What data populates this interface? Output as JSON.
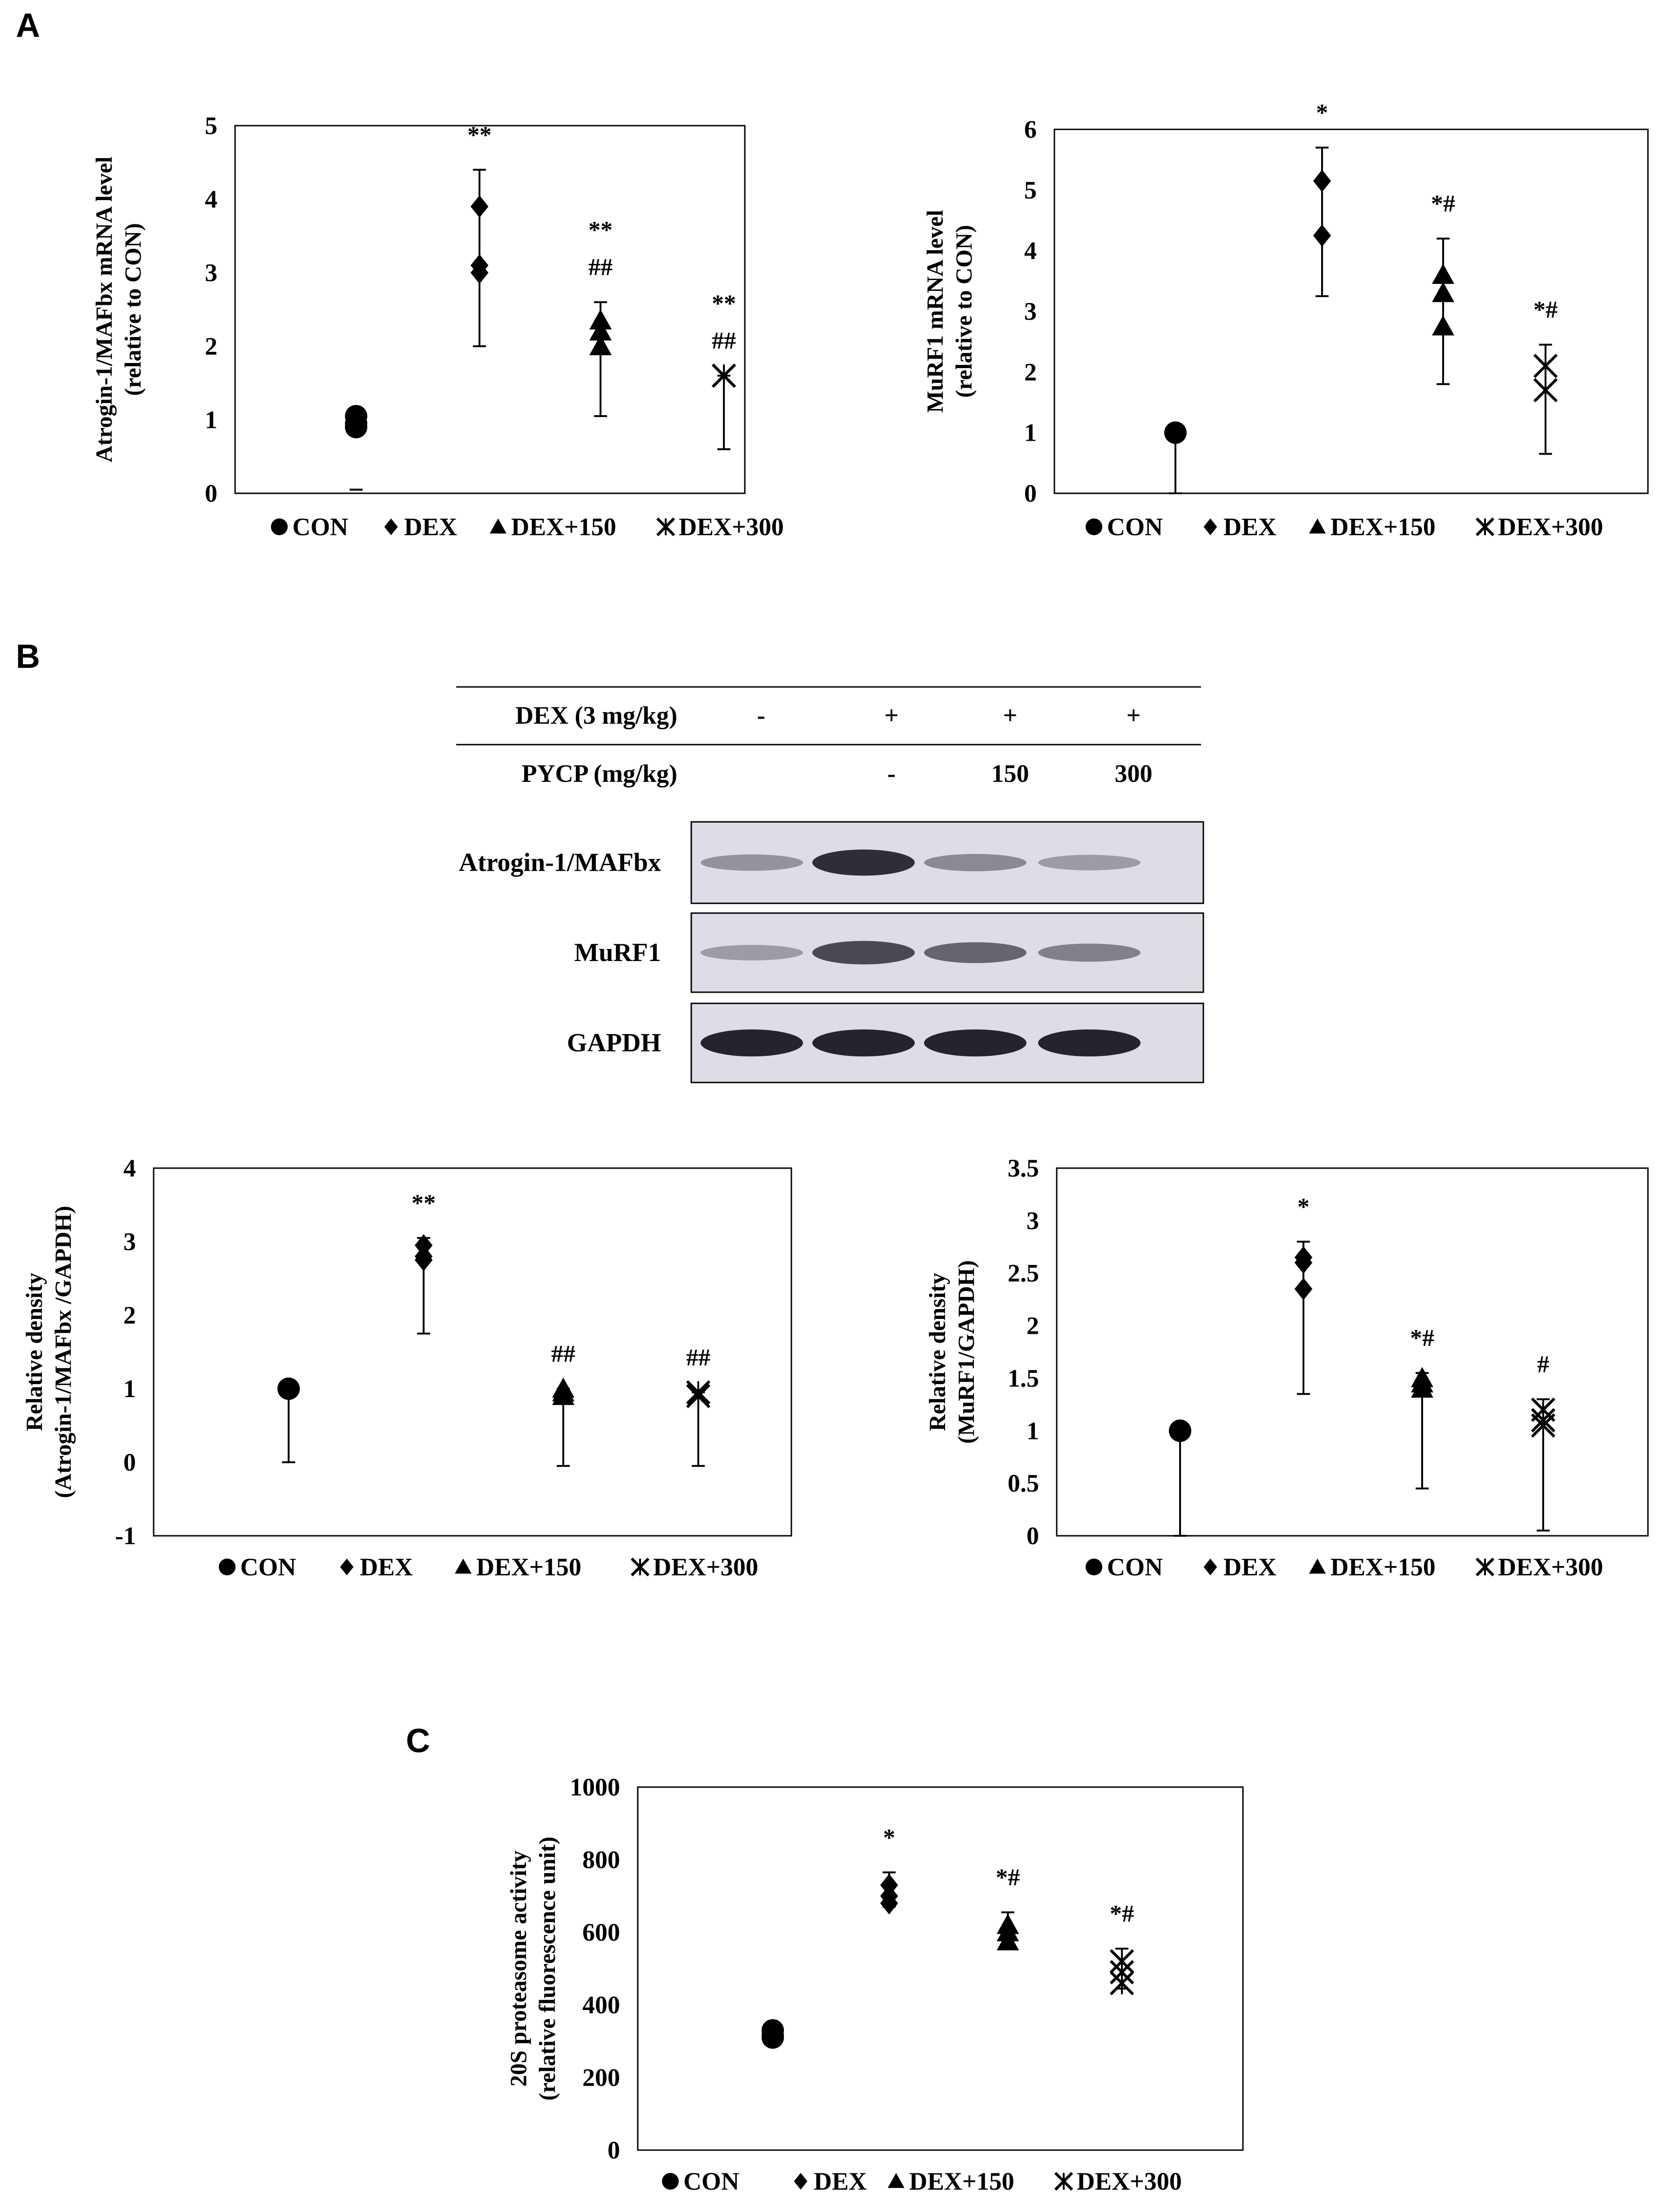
{
  "panel_labels": [
    "A",
    "B",
    "C"
  ],
  "legend": {
    "items": [
      {
        "label": "CON",
        "marker": "circle"
      },
      {
        "label": "DEX",
        "marker": "diamond"
      },
      {
        "label": "DEX+150",
        "marker": "triangle"
      },
      {
        "label": "DEX+300",
        "marker": "asterisk-x"
      }
    ]
  },
  "western_blot": {
    "header_rows": [
      {
        "label": "DEX (3 mg/kg)",
        "values": [
          "-",
          "+",
          "+",
          "+"
        ]
      },
      {
        "label": "PYCP (mg/kg)",
        "values": [
          "",
          "-",
          "150",
          "300"
        ]
      }
    ],
    "bands": [
      {
        "label": "Atrogin-1/MAFbx",
        "intensity": [
          0.35,
          0.9,
          0.4,
          0.3
        ]
      },
      {
        "label": "MuRF1",
        "intensity": [
          0.3,
          0.75,
          0.6,
          0.45
        ]
      },
      {
        "label": "GAPDH",
        "intensity": [
          0.95,
          0.95,
          0.95,
          0.95
        ]
      }
    ]
  },
  "chart_data": [
    {
      "id": "A-left",
      "type": "scatter",
      "title": "",
      "ylabel_lines": [
        "Atrogin-1/MAFbx mRNA level",
        "(relative to CON)"
      ],
      "ylim": [
        0,
        5
      ],
      "yticks": [
        0,
        1,
        2,
        3,
        4,
        5
      ],
      "categories": [
        "CON",
        "DEX",
        "DEX+150",
        "DEX+300"
      ],
      "series": [
        {
          "points": [
            1.05,
            0.95,
            0.9
          ],
          "error_low": 0.05,
          "error_high": 0.05
        },
        {
          "points": [
            3.9,
            3.1,
            3.0
          ],
          "error_low": 2.0,
          "error_high": 4.4
        },
        {
          "points": [
            2.35,
            2.2,
            2.0
          ],
          "error_low": 1.05,
          "error_high": 2.6
        },
        {
          "points": [
            1.6,
            1.6
          ],
          "error_low": 0.6,
          "error_high": 1.6
        }
      ],
      "annotations": [
        [
          "",
          ""
        ],
        [
          "**",
          ""
        ],
        [
          "**",
          "##"
        ],
        [
          "**",
          "##"
        ]
      ],
      "grid": false,
      "legend": "bottom"
    },
    {
      "id": "A-right",
      "type": "scatter",
      "title": "",
      "ylabel_lines": [
        "MuRF1 mRNA level",
        "(relative to CON)"
      ],
      "ylim": [
        0,
        6
      ],
      "yticks": [
        0,
        1,
        2,
        3,
        4,
        5,
        6
      ],
      "categories": [
        "CON",
        "DEX",
        "DEX+150",
        "DEX+300"
      ],
      "series": [
        {
          "points": [
            1.0,
            1.0
          ],
          "error_low": 0.0,
          "error_high": 1.0
        },
        {
          "points": [
            5.15,
            4.25
          ],
          "error_low": 3.25,
          "error_high": 5.7
        },
        {
          "points": [
            3.6,
            3.3,
            2.75
          ],
          "error_low": 1.8,
          "error_high": 4.2
        },
        {
          "points": [
            2.1,
            1.7
          ],
          "error_low": 0.65,
          "error_high": 2.45
        }
      ],
      "annotations": [
        [
          "",
          ""
        ],
        [
          "*",
          ""
        ],
        [
          "*#",
          ""
        ],
        [
          "*#",
          ""
        ]
      ],
      "grid": false,
      "legend": "bottom"
    },
    {
      "id": "B-left",
      "type": "scatter",
      "title": "",
      "ylabel_lines": [
        "Relative density",
        "(Atrogin-1/MAFbx /GAPDH)"
      ],
      "ylim": [
        -1,
        4
      ],
      "yticks": [
        -1,
        0,
        1,
        2,
        3,
        4
      ],
      "categories": [
        "CON",
        "DEX",
        "DEX+150",
        "DEX+300"
      ],
      "series": [
        {
          "points": [
            1.0,
            1.0
          ],
          "error_low": 0.0,
          "error_high": 1.0
        },
        {
          "points": [
            2.95,
            2.8,
            2.75
          ],
          "error_low": 1.75,
          "error_high": 3.05
        },
        {
          "points": [
            1.0,
            0.95,
            0.9
          ],
          "error_low": -0.05,
          "error_high": 1.0
        },
        {
          "points": [
            0.95,
            0.9
          ],
          "error_low": -0.05,
          "error_high": 0.95
        }
      ],
      "annotations": [
        [
          "",
          ""
        ],
        [
          "**",
          ""
        ],
        [
          "##",
          ""
        ],
        [
          "##",
          ""
        ]
      ],
      "grid": false,
      "legend": "bottom"
    },
    {
      "id": "B-right",
      "type": "scatter",
      "title": "",
      "ylabel_lines": [
        "Relative density",
        "(MuRF1/GAPDH)"
      ],
      "ylim": [
        0,
        3.5
      ],
      "yticks": [
        0,
        0.5,
        1,
        1.5,
        2,
        2.5,
        3,
        3.5
      ],
      "categories": [
        "CON",
        "DEX",
        "DEX+150",
        "DEX+300"
      ],
      "series": [
        {
          "points": [
            1.0,
            1.0
          ],
          "error_low": 0.0,
          "error_high": 1.0
        },
        {
          "points": [
            2.65,
            2.6,
            2.35
          ],
          "error_low": 1.35,
          "error_high": 2.8
        },
        {
          "points": [
            1.5,
            1.45,
            1.4
          ],
          "error_low": 0.45,
          "error_high": 1.55
        },
        {
          "points": [
            1.2,
            1.1,
            1.05
          ],
          "error_low": 0.05,
          "error_high": 1.3
        }
      ],
      "annotations": [
        [
          "",
          ""
        ],
        [
          "*",
          ""
        ],
        [
          "*#",
          ""
        ],
        [
          "#",
          ""
        ]
      ],
      "grid": false,
      "legend": "bottom"
    },
    {
      "id": "C",
      "type": "scatter",
      "title": "",
      "ylabel_lines": [
        "20S proteasome activity",
        "(relative fluorescence unit)"
      ],
      "ylim": [
        0,
        1000
      ],
      "yticks": [
        0,
        200,
        400,
        600,
        800,
        1000
      ],
      "categories": [
        "CON",
        "DEX",
        "DEX+150",
        "DEX+300"
      ],
      "series": [
        {
          "points": [
            330,
            315,
            310
          ],
          "error_low": 305,
          "error_high": 335
        },
        {
          "points": [
            730,
            700,
            680
          ],
          "error_low": 670,
          "error_high": 765
        },
        {
          "points": [
            620,
            600,
            575
          ],
          "error_low": 560,
          "error_high": 655
        },
        {
          "points": [
            520,
            490,
            460
          ],
          "error_low": 445,
          "error_high": 555
        }
      ],
      "annotations": [
        [
          "",
          ""
        ],
        [
          "*",
          ""
        ],
        [
          "*#",
          ""
        ],
        [
          "*#",
          ""
        ]
      ],
      "grid": false,
      "legend": "bottom"
    }
  ]
}
